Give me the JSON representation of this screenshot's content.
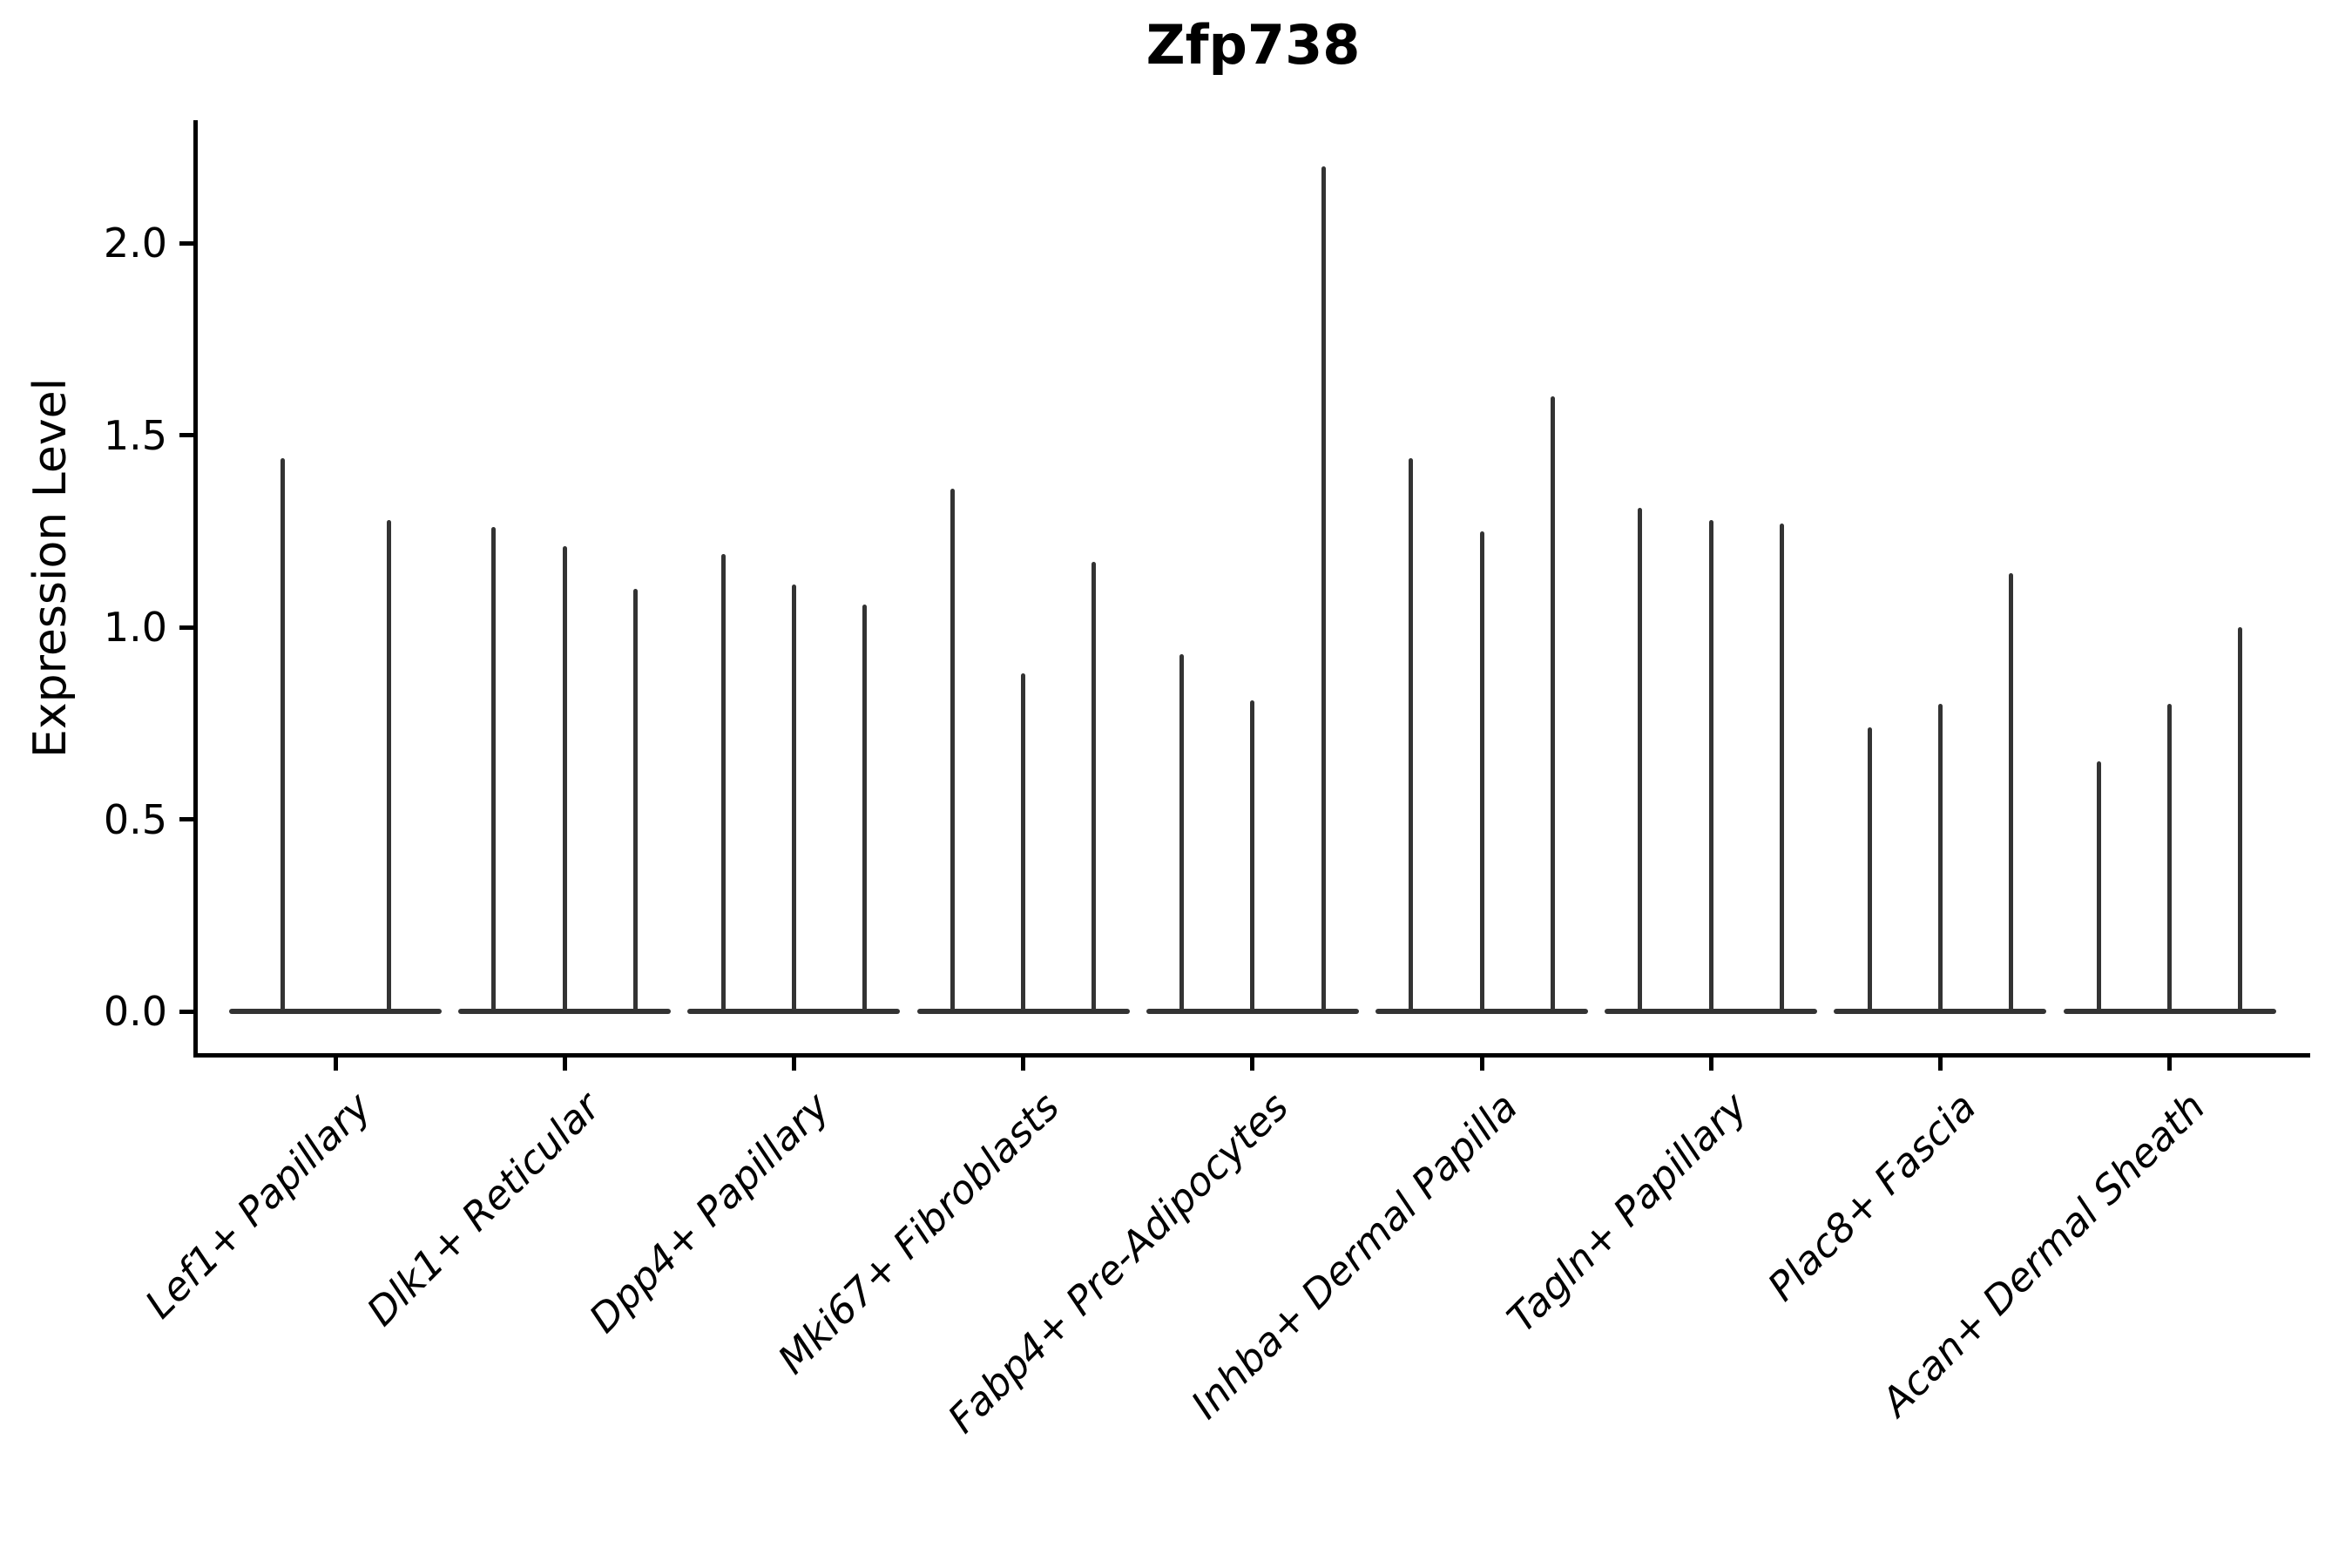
{
  "chart_data": {
    "type": "violin",
    "title": "Zfp738",
    "xlabel": "",
    "ylabel": "Expression Level",
    "ylim": [
      -0.11,
      2.32
    ],
    "yticks": [
      0.0,
      0.5,
      1.0,
      1.5,
      2.0
    ],
    "ytick_labels": [
      "0.0",
      "0.5",
      "1.0",
      "1.5",
      "2.0"
    ],
    "grid": false,
    "legend_position": "none",
    "style_note": "Single-cell expression violin plot; violins are collapsed flat at 0 (sparse expression) with thin vertical tails rising to each violin's maximum value",
    "categories": [
      "Lef1+ Papillary",
      "Dlk1+ Reticular",
      "Dpp4+ Papillary",
      "Mki67+ Fibroblasts",
      "Fabp4+ Pre-Adipocytes",
      "Inhba+ Dermal Papilla",
      "Tagln+ Papillary",
      "Plac8+ Fascia",
      "Acan+ Dermal Sheath"
    ],
    "violins": [
      {
        "category": "Lef1+ Papillary",
        "maxima": [
          1.44,
          1.28
        ]
      },
      {
        "category": "Dlk1+ Reticular",
        "maxima": [
          1.26,
          1.21,
          1.1
        ]
      },
      {
        "category": "Dpp4+ Papillary",
        "maxima": [
          1.19,
          1.11,
          1.06
        ]
      },
      {
        "category": "Mki67+ Fibroblasts",
        "maxima": [
          1.36,
          0.88,
          1.17
        ]
      },
      {
        "category": "Fabp4+ Pre-Adipocytes",
        "maxima": [
          0.93,
          0.81,
          2.2
        ]
      },
      {
        "category": "Inhba+ Dermal Papilla",
        "maxima": [
          1.44,
          1.25,
          1.6
        ]
      },
      {
        "category": "Tagln+ Papillary",
        "maxima": [
          1.31,
          1.28,
          1.27
        ]
      },
      {
        "category": "Plac8+ Fascia",
        "maxima": [
          0.74,
          0.8,
          1.14
        ]
      },
      {
        "category": "Acan+ Dermal Sheath",
        "maxima": [
          0.65,
          0.8,
          1.0
        ]
      }
    ]
  }
}
